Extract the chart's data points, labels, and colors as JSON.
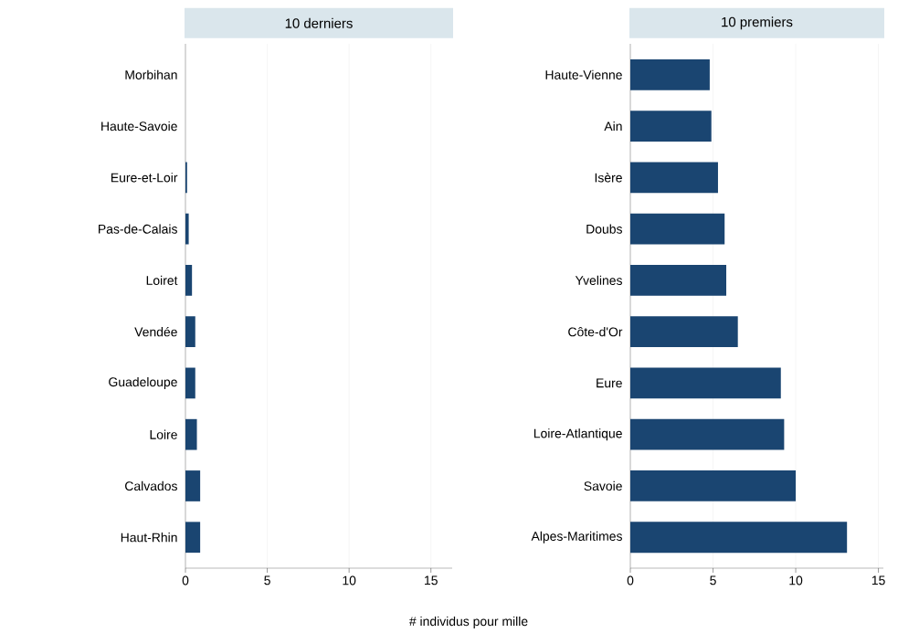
{
  "chart_data": [
    {
      "type": "bar",
      "orientation": "horizontal",
      "title": "10 derniers",
      "xlabel": "# individus pour mille",
      "grid": "x",
      "color": "#1a4571",
      "categories": [
        "Morbihan",
        "Haute-Savoie",
        "Eure-et-Loir",
        "Pas-de-Calais",
        "Loiret",
        "Vendée",
        "Guadeloupe",
        "Loire",
        "Calvados",
        "Haut-Rhin"
      ],
      "values": [
        null,
        null,
        0.1,
        0.2,
        0.4,
        0.6,
        0.6,
        0.7,
        0.9,
        0.9
      ],
      "xlim": [
        0,
        16.3
      ],
      "xticks": [
        0,
        5,
        10,
        15
      ]
    },
    {
      "type": "bar",
      "orientation": "horizontal",
      "title": "10 premiers",
      "grid": "x",
      "color": "#1a4571",
      "categories": [
        "Haute-Vienne",
        "Ain",
        "Isère",
        "Doubs",
        "Yvelines",
        "Côte-d'Or",
        "Eure",
        "Loire-Atlantique",
        "Savoie",
        "Alpes-Maritimes"
      ],
      "values": [
        4.8,
        4.9,
        5.3,
        5.7,
        5.8,
        6.5,
        9.1,
        9.3,
        10.0,
        13.1
      ],
      "xlim": [
        0,
        15.3
      ],
      "xticks": [
        0,
        5,
        10,
        15
      ]
    }
  ]
}
